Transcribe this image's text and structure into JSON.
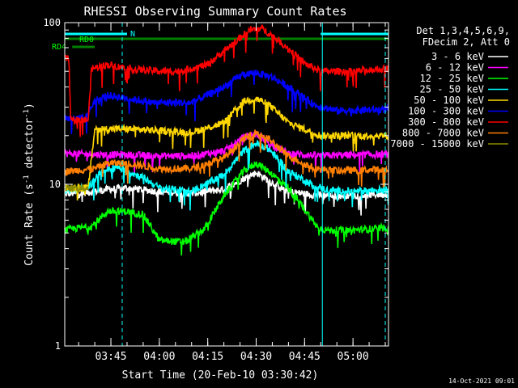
{
  "chart_data": {
    "type": "line",
    "title": "RHESSI Observing Summary Count Rates",
    "xlabel": "Start Time (20-Feb-10 03:30:42)",
    "ylabel_main": "Count Rate (s",
    "ylabel_sup": "-1",
    "ylabel_tail": " detector",
    "ylabel_end": ")",
    "yscale": "log",
    "ylim": [
      1,
      100
    ],
    "yticks": [
      {
        "v": 1,
        "label": "1"
      },
      {
        "v": 10,
        "label": "10"
      },
      {
        "v": 100,
        "label": "100"
      }
    ],
    "xlim_min": [
      0.7,
      101
    ],
    "xticks": [
      {
        "m": 15,
        "label": "03:45"
      },
      {
        "m": 30,
        "label": "04:00"
      },
      {
        "m": 45,
        "label": "04:15"
      },
      {
        "m": 60,
        "label": "04:30"
      },
      {
        "m": 75,
        "label": "04:45"
      },
      {
        "m": 90,
        "label": "05:00"
      }
    ],
    "legend_header": [
      "Det 1,3,4,5,6,9,",
      "FDecim 2, Att 0"
    ],
    "series": [
      {
        "name": "3 - 6 keV",
        "color": "#ffffff",
        "x": [
          0.7,
          10,
          14,
          20,
          30,
          40,
          50,
          56,
          60,
          64,
          70,
          78,
          85,
          95,
          101
        ],
        "y": [
          8.7,
          9.0,
          9.3,
          9.5,
          9.0,
          8.8,
          9.3,
          10.8,
          11.8,
          10.5,
          9.0,
          8.6,
          8.5,
          8.6,
          8.7
        ]
      },
      {
        "name": "6 - 12 keV",
        "color": "#ff00ff",
        "x": [
          0.7,
          10,
          20,
          30,
          40,
          50,
          56,
          60,
          64,
          70,
          80,
          90,
          101
        ],
        "y": [
          15.5,
          15.3,
          15.2,
          15.0,
          15.0,
          16.0,
          19.5,
          20.5,
          18.0,
          15.5,
          15.0,
          15.2,
          15.3
        ]
      },
      {
        "name": "12 - 25 keV",
        "color": "#00ff00",
        "x": [
          0.7,
          3,
          9,
          14,
          20,
          25,
          30,
          38,
          44,
          50,
          56,
          60,
          64,
          70,
          76,
          79,
          82,
          90,
          101
        ],
        "y": [
          5.2,
          5.3,
          5.5,
          6.8,
          6.8,
          6.5,
          4.5,
          4.4,
          5.3,
          8.5,
          12.0,
          13.5,
          12.0,
          9.5,
          6.6,
          5.4,
          5.2,
          5.2,
          5.4
        ]
      },
      {
        "name": "25 - 50 keV",
        "color": "#00ffff",
        "x": [
          0.7,
          8,
          12,
          17,
          25,
          30,
          40,
          50,
          56,
          60,
          64,
          70,
          78,
          82,
          90,
          101
        ],
        "y": [
          9.2,
          9.5,
          12.0,
          12.8,
          11.0,
          9.5,
          9.0,
          11.5,
          16.0,
          18.0,
          16.5,
          12.0,
          9.8,
          9.2,
          9.0,
          9.3
        ]
      },
      {
        "name": "50 - 100 keV",
        "color": "#ffd700",
        "x": [
          0.7,
          8,
          10,
          20,
          40,
          50,
          56,
          60,
          64,
          70,
          80,
          101
        ],
        "y": [
          9.5,
          9.5,
          22.0,
          22.0,
          21.0,
          24.0,
          32.5,
          34.0,
          31.0,
          24.0,
          20.0,
          20.0
        ]
      },
      {
        "name": "100 - 300 keV",
        "color": "#0000ff",
        "x": [
          0.7,
          2,
          7,
          10,
          14,
          20,
          28,
          40,
          50,
          56,
          60,
          65,
          70,
          78,
          85,
          101
        ],
        "y": [
          26.0,
          25.5,
          25.5,
          33.0,
          35.5,
          34.0,
          32.0,
          32.0,
          40.0,
          48.0,
          49.0,
          46.0,
          40.0,
          31.0,
          28.5,
          29.0
        ]
      },
      {
        "name": "300 - 800 keV",
        "color": "#ff0000",
        "x": [
          0.7,
          2,
          2.5,
          8,
          9,
          14,
          20,
          30,
          36,
          45,
          52,
          58,
          62,
          68,
          75,
          80,
          90,
          101
        ],
        "y": [
          60.0,
          60.0,
          25.0,
          25.0,
          52.0,
          55.0,
          52.0,
          50.0,
          50.0,
          55.0,
          72.0,
          90.0,
          92.0,
          75.0,
          56.0,
          50.0,
          50.0,
          52.0
        ]
      },
      {
        "name": "800 - 7000 keV",
        "color": "#ff7f00",
        "x": [
          0.7,
          10,
          14,
          20,
          30,
          40,
          50,
          56,
          60,
          64,
          70,
          78,
          85,
          101
        ],
        "y": [
          12.0,
          12.5,
          13.5,
          13.5,
          12.5,
          12.5,
          14.5,
          19.0,
          21.0,
          19.0,
          15.0,
          12.5,
          12.2,
          12.3
        ]
      },
      {
        "name": "7000 - 15000 keV",
        "color": "#8b8b00",
        "x": [
          0.7,
          8
        ],
        "y": [
          9.5,
          9.5
        ]
      }
    ],
    "flags": [
      {
        "name": "N",
        "color": "#00ffff",
        "segments": [
          [
            0.7,
            20
          ],
          [
            80,
            101
          ]
        ]
      },
      {
        "name": "RD0",
        "color": "#008000",
        "segments": [
          [
            0.7,
            101
          ]
        ]
      },
      {
        "name": "RD4",
        "color": "#008000",
        "segments": [
          [
            3,
            10
          ]
        ]
      }
    ],
    "markers": [
      {
        "m": 0.7,
        "style": "solid",
        "color": "#00ffff"
      },
      {
        "m": 18.5,
        "style": "dashed",
        "color": "#00ffff"
      },
      {
        "m": 80.5,
        "style": "solid",
        "color": "#00ffff"
      },
      {
        "m": 100,
        "style": "dashed",
        "color": "#00ffff"
      }
    ]
  },
  "footer_date": "14-Oct-2021 09:01"
}
